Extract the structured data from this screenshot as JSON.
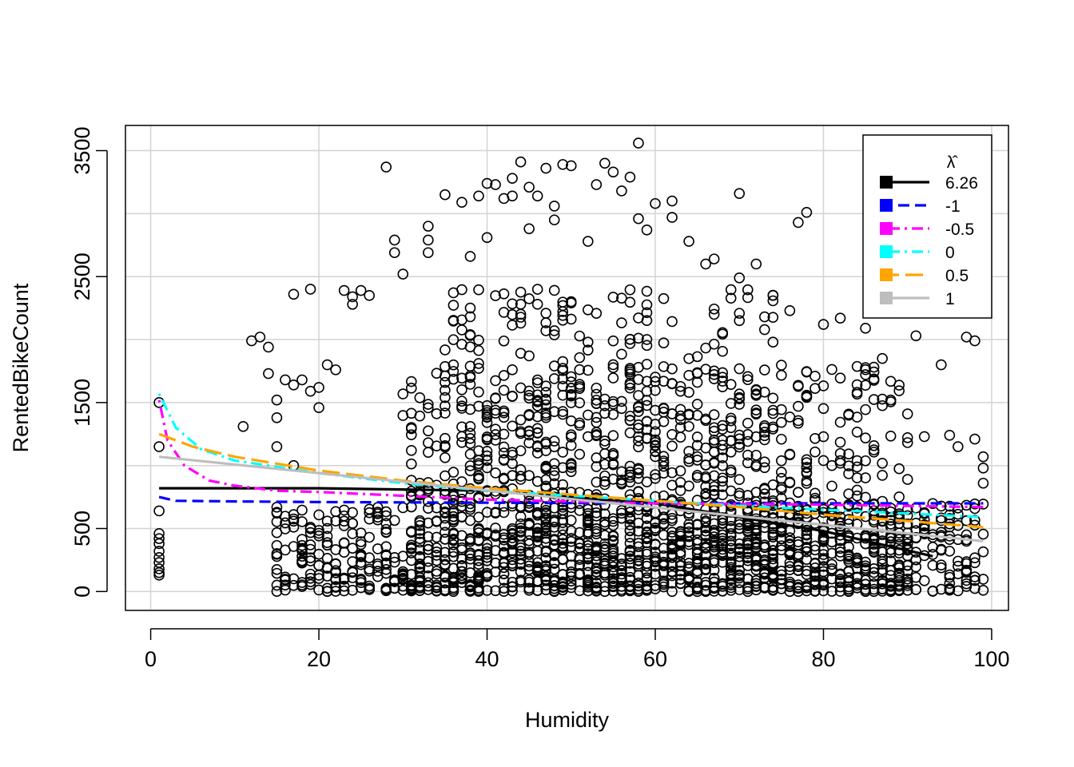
{
  "chart_data": {
    "type": "scatter",
    "xlabel": "Humidity",
    "ylabel": "RentedBikeCount",
    "xlim": [
      -3,
      102
    ],
    "ylim": [
      -150,
      3700
    ],
    "x_ticks": [
      0,
      20,
      40,
      60,
      80,
      100
    ],
    "y_ticks": [
      0,
      500,
      1500,
      2500,
      3500
    ],
    "y_grid": [
      0,
      500,
      1000,
      1500,
      2000,
      2500,
      3000,
      3500
    ],
    "x_grid": [
      0,
      20,
      40,
      60,
      80,
      100
    ],
    "grid": true,
    "point_style": "open-circle",
    "point_density_note": "",
    "legend": {
      "title": "λ̂",
      "position": "top-right",
      "entries": [
        {
          "label": "6.26",
          "color": "#000000",
          "dash": "solid"
        },
        {
          "label": "-1",
          "color": "#0000FF",
          "dash": "dashed"
        },
        {
          "label": "-0.5",
          "color": "#FF00FF",
          "dash": "dotdash"
        },
        {
          "label": "0",
          "color": "#00FFFF",
          "dash": "dotdash"
        },
        {
          "label": "0.5",
          "color": "#FFA500",
          "dash": "longdash"
        },
        {
          "label": "1",
          "color": "#BEBEBE",
          "dash": "solid"
        }
      ]
    },
    "series": [
      {
        "name": "6.26",
        "color": "#000000",
        "dash": "solid",
        "x": [
          1,
          20,
          40,
          60,
          80,
          93
        ],
        "y": [
          820,
          820,
          800,
          700,
          480,
          280
        ]
      },
      {
        "name": "-1",
        "color": "#0000FF",
        "dash": "dashed",
        "x": [
          1,
          3,
          10,
          20,
          40,
          60,
          80,
          99
        ],
        "y": [
          750,
          720,
          715,
          710,
          705,
          700,
          700,
          700
        ]
      },
      {
        "name": "-0.5",
        "color": "#FF00FF",
        "dash": "dotdash",
        "x": [
          1,
          2,
          4,
          7,
          10,
          15,
          20,
          30,
          40,
          60,
          80,
          99
        ],
        "y": [
          1520,
          1200,
          1000,
          880,
          840,
          800,
          790,
          760,
          730,
          700,
          690,
          670
        ]
      },
      {
        "name": "0",
        "color": "#00FFFF",
        "dash": "dotdash",
        "x": [
          1,
          3,
          6,
          10,
          15,
          20,
          30,
          40,
          50,
          60,
          70,
          80,
          90,
          99
        ],
        "y": [
          1570,
          1300,
          1130,
          1040,
          990,
          940,
          860,
          800,
          760,
          720,
          680,
          650,
          620,
          590
        ]
      },
      {
        "name": "0.5",
        "color": "#FFA500",
        "dash": "longdash",
        "x": [
          1,
          5,
          10,
          20,
          30,
          40,
          50,
          60,
          70,
          80,
          90,
          99
        ],
        "y": [
          1250,
          1150,
          1070,
          960,
          880,
          820,
          770,
          720,
          670,
          610,
          560,
          510
        ]
      },
      {
        "name": "1",
        "color": "#BEBEBE",
        "dash": "solid",
        "x": [
          1,
          99
        ],
        "y": [
          1070,
          400
        ]
      }
    ],
    "points": [
      [
        1,
        1500
      ],
      [
        1,
        1150
      ],
      [
        1,
        640
      ],
      [
        1,
        460
      ],
      [
        1,
        420
      ],
      [
        1,
        380
      ],
      [
        1,
        320
      ],
      [
        1,
        270
      ],
      [
        1,
        230
      ],
      [
        1,
        180
      ],
      [
        1,
        150
      ],
      [
        1,
        130
      ],
      [
        11,
        1310
      ],
      [
        12,
        1990
      ],
      [
        13,
        2020
      ],
      [
        14,
        1940
      ],
      [
        14,
        1730
      ],
      [
        15,
        1520
      ],
      [
        15,
        1380
      ],
      [
        15,
        1150
      ],
      [
        16,
        1680
      ],
      [
        17,
        1640
      ],
      [
        17,
        2360
      ],
      [
        17,
        1000
      ],
      [
        18,
        1680
      ],
      [
        19,
        2400
      ],
      [
        19,
        1590
      ],
      [
        20,
        1620
      ],
      [
        20,
        1460
      ],
      [
        21,
        1800
      ],
      [
        22,
        1760
      ],
      [
        23,
        2390
      ],
      [
        24,
        2280
      ],
      [
        24,
        2340
      ],
      [
        25,
        2390
      ],
      [
        26,
        2350
      ],
      [
        28,
        3370
      ],
      [
        29,
        2790
      ],
      [
        29,
        2690
      ],
      [
        30,
        2520
      ],
      [
        33,
        2900
      ],
      [
        33,
        2790
      ],
      [
        33,
        2690
      ],
      [
        35,
        3150
      ],
      [
        37,
        3090
      ],
      [
        38,
        2660
      ],
      [
        39,
        3140
      ],
      [
        40,
        3240
      ],
      [
        40,
        2810
      ],
      [
        41,
        3230
      ],
      [
        42,
        3120
      ],
      [
        43,
        3140
      ],
      [
        43,
        3280
      ],
      [
        44,
        3410
      ],
      [
        45,
        3210
      ],
      [
        45,
        2880
      ],
      [
        46,
        3140
      ],
      [
        47,
        3360
      ],
      [
        48,
        3060
      ],
      [
        48,
        2950
      ],
      [
        49,
        3390
      ],
      [
        50,
        3380
      ],
      [
        52,
        2780
      ],
      [
        53,
        3230
      ],
      [
        54,
        3400
      ],
      [
        55,
        3330
      ],
      [
        56,
        3180
      ],
      [
        57,
        3290
      ],
      [
        58,
        3560
      ],
      [
        58,
        2960
      ],
      [
        59,
        2870
      ],
      [
        60,
        3080
      ],
      [
        62,
        3100
      ],
      [
        62,
        2970
      ],
      [
        64,
        2780
      ],
      [
        66,
        2600
      ],
      [
        67,
        2640
      ],
      [
        70,
        2490
      ],
      [
        70,
        3160
      ],
      [
        72,
        2600
      ],
      [
        74,
        2350
      ],
      [
        76,
        2230
      ],
      [
        77,
        2930
      ],
      [
        78,
        3010
      ],
      [
        80,
        2120
      ],
      [
        82,
        2170
      ],
      [
        85,
        2090
      ],
      [
        87,
        1850
      ],
      [
        88,
        1520
      ],
      [
        90,
        1410
      ],
      [
        91,
        2030
      ],
      [
        92,
        1230
      ],
      [
        94,
        1800
      ],
      [
        95,
        1240
      ],
      [
        96,
        1150
      ],
      [
        97,
        2020
      ],
      [
        98,
        1990
      ],
      [
        98,
        1210
      ],
      [
        99,
        1070
      ],
      [
        99,
        980
      ],
      [
        99,
        860
      ]
    ],
    "dense_bands": [
      {
        "x0": 15,
        "x1": 99,
        "y0": 0,
        "y1": 700
      },
      {
        "x0": 30,
        "x1": 90,
        "y0": 0,
        "y1": 1800
      },
      {
        "x0": 35,
        "x1": 75,
        "y0": 200,
        "y1": 2400
      }
    ]
  }
}
